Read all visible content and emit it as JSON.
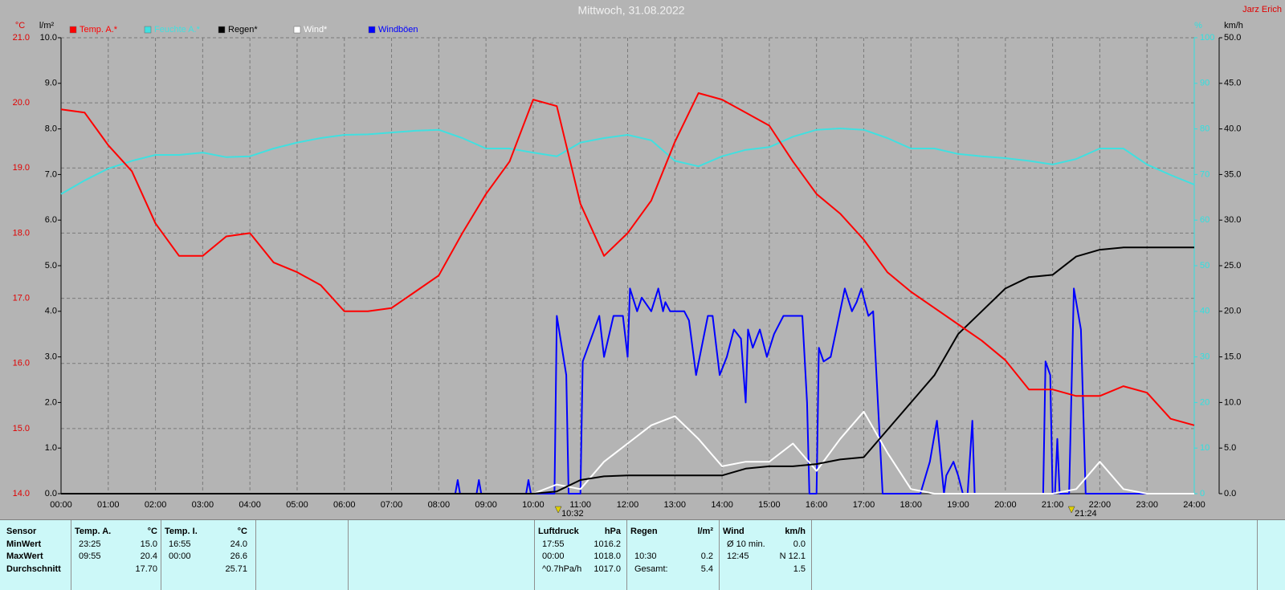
{
  "chart_data": {
    "type": "line",
    "title": "Mittwoch, 31.08.2022",
    "author": "Jarz Erich",
    "grid": true,
    "xlim": [
      0,
      24
    ],
    "xticks": [
      {
        "value": 0,
        "label": "00:00"
      },
      {
        "value": 1,
        "label": "01:00"
      },
      {
        "value": 2,
        "label": "02:00"
      },
      {
        "value": 3,
        "label": "03:00"
      },
      {
        "value": 4,
        "label": "04:00"
      },
      {
        "value": 5,
        "label": "05:00"
      },
      {
        "value": 6,
        "label": "06:00"
      },
      {
        "value": 7,
        "label": "07:00"
      },
      {
        "value": 8,
        "label": "08:00"
      },
      {
        "value": 9,
        "label": "09:00"
      },
      {
        "value": 10,
        "label": "10:00"
      },
      {
        "value": 11,
        "label": "11:00"
      },
      {
        "value": 12,
        "label": "12:00"
      },
      {
        "value": 13,
        "label": "13:00"
      },
      {
        "value": 14,
        "label": "14:00"
      },
      {
        "value": 15,
        "label": "15:00"
      },
      {
        "value": 16,
        "label": "16:00"
      },
      {
        "value": 17,
        "label": "17:00"
      },
      {
        "value": 18,
        "label": "18:00"
      },
      {
        "value": 19,
        "label": "19:00"
      },
      {
        "value": 20,
        "label": "20:00"
      },
      {
        "value": 21,
        "label": "21:00"
      },
      {
        "value": 22,
        "label": "22:00"
      },
      {
        "value": 23,
        "label": "23:00"
      },
      {
        "value": 24,
        "label": "24:00"
      }
    ],
    "ylabel": "°C",
    "ylim": [
      14,
      21
    ],
    "yticks": [
      {
        "value": 14,
        "label": "14.0"
      },
      {
        "value": 15,
        "label": "15.0"
      },
      {
        "value": 16,
        "label": "16.0"
      },
      {
        "value": 17,
        "label": "17.0"
      },
      {
        "value": 18,
        "label": "18.0"
      },
      {
        "value": 19,
        "label": "19.0"
      },
      {
        "value": 20,
        "label": "20.0"
      },
      {
        "value": 21,
        "label": "21.0"
      }
    ],
    "y2label": "l/m²",
    "y2lim": [
      0,
      10
    ],
    "y2ticks": [
      {
        "value": 0,
        "label": "0.0"
      },
      {
        "value": 1,
        "label": "1.0"
      },
      {
        "value": 2,
        "label": "2.0"
      },
      {
        "value": 3,
        "label": "3.0"
      },
      {
        "value": 4,
        "label": "4.0"
      },
      {
        "value": 5,
        "label": "5.0"
      },
      {
        "value": 6,
        "label": "6.0"
      },
      {
        "value": 7,
        "label": "7.0"
      },
      {
        "value": 8,
        "label": "8.0"
      },
      {
        "value": 9,
        "label": "9.0"
      },
      {
        "value": 10,
        "label": "10.0"
      }
    ],
    "y3label": "%",
    "y3lim": [
      0,
      100
    ],
    "y3ticks": [
      0,
      10,
      20,
      30,
      40,
      50,
      60,
      70,
      80,
      90,
      100
    ],
    "y4label": "km/h",
    "y4lim": [
      0,
      50
    ],
    "y4ticks": [
      {
        "value": 0,
        "label": "0.0"
      },
      {
        "value": 5,
        "label": "5.0"
      },
      {
        "value": 10,
        "label": "10.0"
      },
      {
        "value": 15,
        "label": "15.0"
      },
      {
        "value": 20,
        "label": "20.0"
      },
      {
        "value": 25,
        "label": "25.0"
      },
      {
        "value": 30,
        "label": "30.0"
      },
      {
        "value": 35,
        "label": "35.0"
      },
      {
        "value": 40,
        "label": "40.0"
      },
      {
        "value": 45,
        "label": "45.0"
      },
      {
        "value": 50,
        "label": "50.0"
      }
    ],
    "x": [
      0,
      0.5,
      1,
      1.5,
      2,
      2.5,
      3,
      3.5,
      4,
      4.5,
      5,
      5.5,
      6,
      6.5,
      7,
      7.5,
      8,
      8.5,
      9,
      9.5,
      10,
      10.5,
      11,
      11.5,
      12,
      12.5,
      13,
      13.5,
      14,
      14.5,
      15,
      15.5,
      16,
      16.5,
      17,
      17.5,
      18,
      18.5,
      19,
      19.5,
      20,
      20.5,
      21,
      21.5,
      22,
      22.5,
      23,
      23.5,
      24
    ],
    "series": [
      {
        "name": "Temp. A.*",
        "color": "#ff0000",
        "axis": "y",
        "values": [
          19.9,
          19.85,
          19.35,
          18.95,
          18.15,
          17.65,
          17.65,
          17.95,
          18.0,
          17.55,
          17.4,
          17.2,
          16.8,
          16.8,
          16.85,
          17.1,
          17.35,
          18.0,
          18.6,
          19.1,
          20.05,
          19.95,
          18.45,
          17.65,
          18.0,
          18.5,
          19.4,
          20.15,
          20.05,
          19.85,
          19.65,
          19.1,
          18.6,
          18.3,
          17.9,
          17.4,
          17.1,
          16.85,
          16.6,
          16.35,
          16.05,
          15.6,
          15.6,
          15.5,
          15.5,
          15.65,
          15.55,
          15.15,
          15.05
        ]
      },
      {
        "name": "Feuchte A.*",
        "color": "#40e0e0",
        "axis": "y3",
        "values": [
          65.7,
          68.7,
          71.3,
          73,
          74.3,
          74.3,
          74.8,
          73.8,
          74,
          75.7,
          77,
          78,
          78.7,
          78.8,
          79.2,
          79.6,
          79.8,
          78,
          75.7,
          75.7,
          74.8,
          74,
          77,
          78,
          78.7,
          77.5,
          73,
          71.8,
          74,
          75.4,
          76,
          78.3,
          79.8,
          80.1,
          79.8,
          78,
          75.7,
          75.7,
          74.5,
          74,
          73.6,
          73,
          72.2,
          73.4,
          75.7,
          75.7,
          72.2,
          69.9,
          67.8
        ]
      },
      {
        "name": "Regen*",
        "color": "#000000",
        "axis": "y2",
        "values": [
          0,
          0,
          0,
          0,
          0,
          0,
          0,
          0,
          0,
          0,
          0,
          0,
          0,
          0,
          0,
          0,
          0,
          0,
          0,
          0,
          0,
          0.05,
          0.3,
          0.38,
          0.4,
          0.4,
          0.4,
          0.4,
          0.4,
          0.55,
          0.6,
          0.6,
          0.65,
          0.75,
          0.8,
          1.4,
          2.0,
          2.6,
          3.5,
          4.0,
          4.5,
          4.75,
          4.8,
          5.2,
          5.35,
          5.4,
          5.4,
          5.4,
          5.4
        ]
      },
      {
        "name": "Wind*",
        "color": "#ffffff",
        "axis": "y4",
        "values": [
          0,
          0,
          0,
          0,
          0,
          0,
          0,
          0,
          0,
          0,
          0,
          0,
          0,
          0,
          0,
          0,
          0,
          0,
          0,
          0,
          0,
          1.0,
          0.5,
          3.5,
          5.5,
          7.5,
          8.5,
          6.0,
          3.0,
          3.5,
          3.5,
          5.5,
          2.5,
          6.0,
          9.0,
          4.5,
          0.5,
          0,
          0,
          0,
          0,
          0,
          0,
          0.5,
          3.5,
          0.5,
          0,
          0,
          0
        ]
      },
      {
        "name": "Windböen",
        "color": "#0000ff",
        "axis": "y4",
        "x": [
          0,
          8.35,
          8.4,
          8.45,
          8.8,
          8.85,
          8.9,
          9.85,
          9.9,
          9.95,
          10.45,
          10.5,
          10.7,
          10.75,
          11.0,
          11.05,
          11.4,
          11.5,
          11.7,
          11.9,
          12.0,
          12.05,
          12.2,
          12.3,
          12.5,
          12.65,
          12.75,
          12.8,
          12.9,
          13.2,
          13.3,
          13.45,
          13.7,
          13.8,
          13.95,
          14.1,
          14.25,
          14.4,
          14.5,
          14.55,
          14.65,
          14.8,
          14.95,
          15.1,
          15.3,
          15.5,
          15.7,
          15.8,
          15.85,
          16.0,
          16.05,
          16.15,
          16.3,
          16.5,
          16.6,
          16.75,
          16.85,
          16.95,
          17.1,
          17.2,
          17.4,
          18.2,
          18.4,
          18.55,
          18.7,
          18.75,
          18.9,
          19.0,
          19.1,
          19.2,
          19.3,
          19.35,
          20.8,
          20.85,
          20.95,
          21.0,
          21.05,
          21.1,
          21.15,
          21.35,
          21.45,
          21.6,
          21.7,
          21.8,
          24
        ],
        "values": [
          0,
          0,
          1.5,
          0,
          0,
          1.5,
          0,
          0,
          1.5,
          0,
          0,
          19.5,
          13,
          0,
          0,
          14.5,
          19.5,
          15,
          19.5,
          19.5,
          15,
          22.5,
          20,
          21.5,
          20,
          22.5,
          20,
          21,
          20,
          20,
          19,
          13,
          19.5,
          19.5,
          13,
          15,
          18,
          17,
          10,
          18,
          16,
          18,
          15,
          17.5,
          19.5,
          19.5,
          19.5,
          10,
          0,
          0,
          16,
          14.5,
          15,
          20,
          22.5,
          20,
          21,
          22.5,
          19.5,
          20,
          0,
          0,
          3.5,
          8,
          0,
          2,
          3.5,
          2,
          0,
          0,
          8,
          0,
          0,
          14.5,
          13,
          0,
          0,
          6,
          0,
          0,
          22.5,
          18,
          0,
          0,
          0
        ]
      }
    ],
    "events": [
      {
        "x": 10.53,
        "label": "10:32"
      },
      {
        "x": 21.4,
        "label": "21:24"
      }
    ]
  },
  "table": {
    "row_labels": [
      "Sensor",
      "MinWert",
      "MaxWert",
      "Durchschnitt"
    ],
    "groups": [
      {
        "title": "Temp. A.",
        "unit": "°C",
        "rows": [
          [
            "23:25",
            "15.0"
          ],
          [
            "09:55",
            "20.4"
          ],
          [
            null,
            "17.70"
          ]
        ]
      },
      {
        "title": "Temp. I.",
        "unit": "°C",
        "rows": [
          [
            "16:55",
            "24.0"
          ],
          [
            "00:00",
            "26.6"
          ],
          [
            null,
            "25.71"
          ]
        ]
      },
      {
        "title": "Luftdruck",
        "unit": "hPa",
        "rows": [
          [
            "17:55",
            "1016.2"
          ],
          [
            "00:00",
            "1018.0"
          ],
          [
            "^0.7hPa/h",
            "1017.0"
          ]
        ]
      },
      {
        "title": "Regen",
        "unit": "l/m²",
        "rows": [
          [
            null,
            null
          ],
          [
            "10:30",
            "0.2"
          ],
          [
            "Gesamt:",
            "5.4"
          ]
        ]
      },
      {
        "title": "Wind",
        "unit": "km/h",
        "rows": [
          [
            "Ø 10 min.",
            "0.0"
          ],
          [
            "12:45",
            "N 12.1"
          ],
          [
            null,
            "1.5"
          ]
        ]
      }
    ]
  }
}
